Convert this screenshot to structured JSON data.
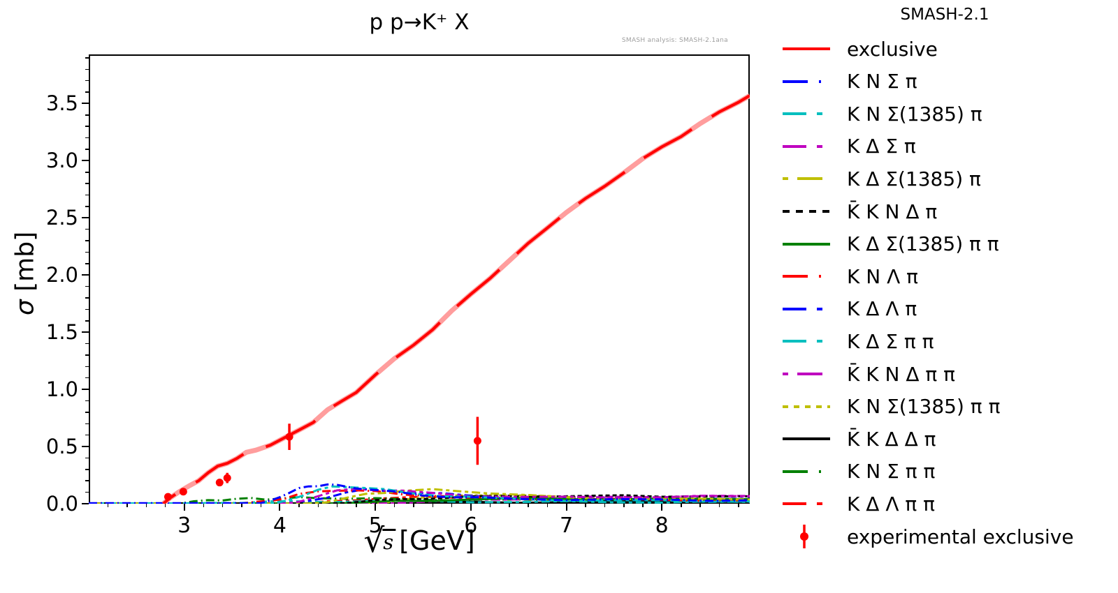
{
  "figure": {
    "title": "p p→K⁺ X",
    "watermark": "SMASH analysis: SMASH-2.1ana",
    "background": "#ffffff"
  },
  "legend": {
    "title": "SMASH-2.1",
    "position": "right"
  },
  "axis": {
    "ylabel_sigma": "σ",
    "ylabel_unit": " [mb]",
    "xlabel_radical": "√",
    "xlabel_radicand": "s",
    "xlabel_unit": "[GeV]"
  },
  "colors": {
    "red": "#ff0000",
    "pink_band": "#ff9d9d",
    "blue": "#0000ff",
    "cyan": "#00bfbf",
    "magenta": "#bf00bf",
    "yellow": "#bfbf00",
    "green": "#008000",
    "black": "#000000",
    "watermark_gray": "#9e9e9e"
  },
  "chart_data": {
    "type": "line",
    "title": "p p→K⁺ X",
    "xlabel": "√s [GeV]",
    "ylabel": "σ [mb]",
    "xlim": [
      2.0,
      8.92
    ],
    "ylim": [
      0,
      3.93
    ],
    "xticks": [
      3,
      4,
      5,
      6,
      7,
      8
    ],
    "x_minor_step": 0.2,
    "yticks": [
      0.0,
      0.5,
      1.0,
      1.5,
      2.0,
      2.5,
      3.0,
      3.5
    ],
    "y_minor_step": 0.1,
    "grid": false,
    "legend_title": "SMASH-2.1",
    "legend_position": "right",
    "series": [
      {
        "name": "exclusive",
        "color": "#ff0000",
        "dash": "solid",
        "width": 4,
        "band_color": "#ff9d9d",
        "x": [
          2.78,
          2.85,
          2.95,
          3.05,
          3.15,
          3.25,
          3.35,
          3.45,
          3.55,
          3.65,
          3.75,
          3.9,
          4.05,
          4.2,
          4.35,
          4.5,
          4.65,
          4.8,
          5.0,
          5.2,
          5.4,
          5.6,
          5.8,
          6.0,
          6.2,
          6.4,
          6.6,
          6.8,
          7.0,
          7.2,
          7.4,
          7.6,
          7.8,
          8.0,
          8.2,
          8.4,
          8.6,
          8.8,
          8.92
        ],
        "y": [
          0,
          0.05,
          0.1,
          0.15,
          0.21,
          0.27,
          0.32,
          0.36,
          0.4,
          0.44,
          0.47,
          0.52,
          0.57,
          0.64,
          0.72,
          0.82,
          0.89,
          0.98,
          1.13,
          1.26,
          1.39,
          1.53,
          1.68,
          1.83,
          1.98,
          2.12,
          2.27,
          2.42,
          2.55,
          2.66,
          2.78,
          2.9,
          3.01,
          3.12,
          3.22,
          3.32,
          3.42,
          3.52,
          3.57
        ]
      },
      {
        "name": "K N Σ π",
        "color": "#0000ff",
        "dash": "longdash-dot",
        "width": 3,
        "x": [
          2.0,
          3.8,
          3.9,
          4.0,
          4.1,
          4.2,
          4.3,
          4.4,
          4.5,
          4.6,
          4.8,
          5.0,
          5.2,
          5.5,
          5.8,
          6.1,
          6.5,
          7.0,
          7.5,
          8.0,
          8.5,
          8.92
        ],
        "y": [
          0.005,
          0.005,
          0.02,
          0.06,
          0.1,
          0.13,
          0.15,
          0.16,
          0.165,
          0.16,
          0.14,
          0.12,
          0.1,
          0.075,
          0.06,
          0.05,
          0.042,
          0.038,
          0.036,
          0.034,
          0.032,
          0.03
        ]
      },
      {
        "name": "K N Σ(1385) π",
        "color": "#00bfbf",
        "dash": "longdash-shortdash",
        "width": 3,
        "x": [
          2.0,
          3.95,
          4.1,
          4.25,
          4.4,
          4.55,
          4.7,
          4.9,
          5.1,
          5.4,
          5.7,
          6.0,
          6.5,
          7.0,
          7.5,
          8.0,
          8.5,
          8.92
        ],
        "y": [
          0.003,
          0.003,
          0.03,
          0.08,
          0.12,
          0.145,
          0.15,
          0.14,
          0.12,
          0.09,
          0.07,
          0.055,
          0.04,
          0.032,
          0.028,
          0.025,
          0.022,
          0.02
        ]
      },
      {
        "name": "K Δ Σ π",
        "color": "#bf00bf",
        "dash": "longdash-shortdash",
        "width": 3,
        "x": [
          2.0,
          4.05,
          4.2,
          4.4,
          4.6,
          4.8,
          5.0,
          5.3,
          5.6,
          6.0,
          6.5,
          7.0,
          7.5,
          8.0,
          8.5,
          8.92
        ],
        "y": [
          0.002,
          0.002,
          0.02,
          0.07,
          0.11,
          0.13,
          0.125,
          0.11,
          0.09,
          0.07,
          0.06,
          0.055,
          0.058,
          0.06,
          0.062,
          0.065
        ]
      },
      {
        "name": "K Δ Σ(1385) π",
        "color": "#bfbf00",
        "dash": "shortdash-longdash",
        "width": 3,
        "x": [
          2.0,
          4.3,
          4.5,
          4.7,
          4.9,
          5.1,
          5.3,
          5.6,
          5.9,
          6.2,
          6.6,
          7.0,
          7.5,
          8.0,
          8.5,
          8.92
        ],
        "y": [
          0.001,
          0.001,
          0.02,
          0.05,
          0.08,
          0.1,
          0.115,
          0.12,
          0.11,
          0.095,
          0.07,
          0.055,
          0.045,
          0.04,
          0.038,
          0.036
        ]
      },
      {
        "name": "K̄ K N Δ π",
        "color": "#000000",
        "dash": "dash",
        "width": 3,
        "x": [
          2.0,
          4.4,
          4.7,
          5.0,
          5.3,
          5.6,
          6.0,
          6.4,
          6.8,
          7.2,
          7.6,
          8.0,
          8.4,
          8.92
        ],
        "y": [
          0.001,
          0.001,
          0.01,
          0.025,
          0.04,
          0.05,
          0.06,
          0.065,
          0.068,
          0.068,
          0.067,
          0.066,
          0.066,
          0.065
        ]
      },
      {
        "name": "K Δ Σ(1385) π π",
        "color": "#008000",
        "dash": "solid",
        "width": 3,
        "x": [
          2.0,
          4.6,
          4.9,
          5.2,
          5.6,
          6.0,
          6.5,
          7.0,
          7.5,
          8.0,
          8.5,
          8.92
        ],
        "y": [
          0.001,
          0.001,
          0.01,
          0.02,
          0.03,
          0.038,
          0.042,
          0.043,
          0.042,
          0.04,
          0.04,
          0.04
        ]
      },
      {
        "name": "K N Λ π",
        "color": "#ff0000",
        "dash": "longdash-dot",
        "width": 3,
        "x": [
          2.0,
          3.6,
          3.75,
          3.9,
          4.05,
          4.2,
          4.4,
          4.6,
          4.8,
          5.0,
          5.3,
          5.6,
          6.0,
          6.5,
          7.0,
          7.5,
          8.0,
          8.5,
          8.92
        ],
        "y": [
          0.002,
          0.002,
          0.01,
          0.025,
          0.05,
          0.08,
          0.105,
          0.12,
          0.115,
          0.105,
          0.085,
          0.07,
          0.055,
          0.045,
          0.04,
          0.036,
          0.033,
          0.03,
          0.03
        ]
      },
      {
        "name": "K Δ Λ π",
        "color": "#0000ff",
        "dash": "longdash-shortdash",
        "width": 3,
        "x": [
          2.0,
          4.1,
          4.3,
          4.5,
          4.7,
          4.9,
          5.1,
          5.4,
          5.7,
          6.0,
          6.5,
          7.0,
          7.5,
          8.0,
          8.5,
          8.92
        ],
        "y": [
          0.001,
          0.001,
          0.02,
          0.06,
          0.1,
          0.12,
          0.115,
          0.1,
          0.085,
          0.07,
          0.058,
          0.05,
          0.047,
          0.045,
          0.044,
          0.043
        ]
      },
      {
        "name": "K Δ Σ π π",
        "color": "#00bfbf",
        "dash": "longdash-shortdash",
        "width": 3,
        "x": [
          2.0,
          3.0,
          3.3,
          3.6,
          3.9,
          4.2,
          4.5,
          5.0,
          5.5,
          6.0,
          6.5,
          7.0,
          7.5,
          8.0,
          8.5,
          8.92
        ],
        "y": [
          0.001,
          0.003,
          0.008,
          0.012,
          0.015,
          0.018,
          0.02,
          0.022,
          0.02,
          0.018,
          0.016,
          0.015,
          0.015,
          0.015,
          0.015,
          0.015
        ]
      },
      {
        "name": "K̄ K N Δ π π",
        "color": "#bf00bf",
        "dash": "shortdash-longdash",
        "width": 3,
        "x": [
          2.0,
          4.8,
          5.2,
          5.6,
          6.0,
          6.4,
          6.8,
          7.2,
          7.6,
          8.0,
          8.4,
          8.92
        ],
        "y": [
          0.001,
          0.001,
          0.01,
          0.02,
          0.03,
          0.04,
          0.048,
          0.055,
          0.06,
          0.063,
          0.065,
          0.068
        ]
      },
      {
        "name": "K N Σ(1385) π π",
        "color": "#bfbf00",
        "dash": "shortdash",
        "width": 3,
        "x": [
          2.0,
          4.8,
          5.1,
          5.4,
          5.8,
          6.2,
          6.6,
          7.0,
          7.5,
          8.0,
          8.5,
          8.92
        ],
        "y": [
          0.001,
          0.001,
          0.015,
          0.04,
          0.07,
          0.08,
          0.07,
          0.055,
          0.045,
          0.04,
          0.036,
          0.034
        ]
      },
      {
        "name": "K̄ K Δ Δ π",
        "color": "#000000",
        "dash": "solid",
        "width": 3,
        "x": [
          2.0,
          5.0,
          5.5,
          6.0,
          6.5,
          7.0,
          7.5,
          8.0,
          8.5,
          8.92
        ],
        "y": [
          0.001,
          0.001,
          0.005,
          0.01,
          0.013,
          0.015,
          0.016,
          0.017,
          0.018,
          0.018
        ]
      },
      {
        "name": "K N Σ π π",
        "color": "#008000",
        "dash": "longdash-dot",
        "width": 3,
        "x": [
          2.0,
          2.95,
          3.1,
          3.25,
          3.4,
          3.55,
          3.7,
          3.85,
          4.0,
          4.2,
          4.4,
          4.7,
          5.0,
          5.4,
          5.8,
          6.2,
          6.6,
          7.0,
          7.5,
          8.0,
          8.5,
          8.92
        ],
        "y": [
          0.001,
          0.001,
          0.015,
          0.03,
          0.035,
          0.04,
          0.045,
          0.042,
          0.045,
          0.05,
          0.052,
          0.048,
          0.042,
          0.038,
          0.035,
          0.033,
          0.032,
          0.031,
          0.03,
          0.03,
          0.03,
          0.03
        ]
      },
      {
        "name": "K Δ Λ π π",
        "color": "#ff0000",
        "dash": "longdash-shortdash",
        "width": 3,
        "x": [
          2.0,
          4.2,
          4.5,
          4.8,
          5.1,
          5.5,
          6.0,
          6.5,
          7.0,
          7.5,
          8.0,
          8.5,
          8.92
        ],
        "y": [
          0.001,
          0.001,
          0.015,
          0.035,
          0.05,
          0.055,
          0.05,
          0.045,
          0.04,
          0.036,
          0.033,
          0.03,
          0.028
        ]
      }
    ],
    "experimental": {
      "name": "experimental exclusive",
      "color": "#ff0000",
      "points": [
        {
          "x": 2.83,
          "y": 0.06,
          "err": 0.015
        },
        {
          "x": 2.99,
          "y": 0.105,
          "err": 0.015
        },
        {
          "x": 3.37,
          "y": 0.185,
          "err": 0.015
        },
        {
          "x": 3.45,
          "y": 0.225,
          "err": 0.045
        },
        {
          "x": 4.1,
          "y": 0.585,
          "err": 0.115
        },
        {
          "x": 6.07,
          "y": 0.55,
          "err": 0.21
        }
      ]
    }
  }
}
